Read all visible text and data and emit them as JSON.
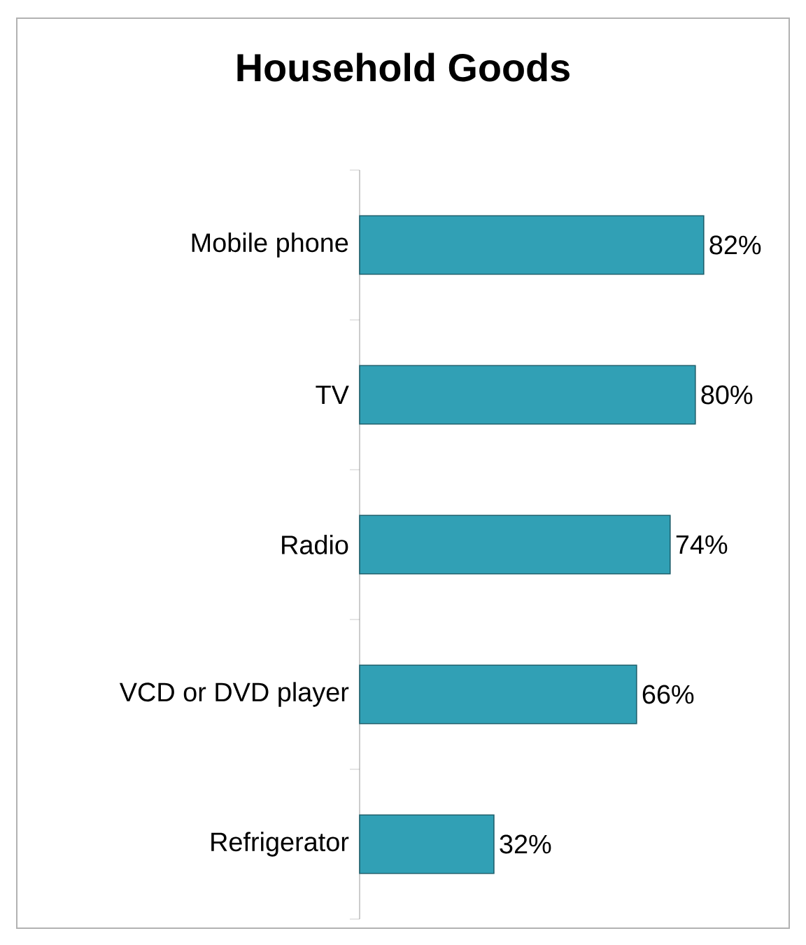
{
  "chart_data": {
    "type": "bar",
    "orientation": "horizontal",
    "title": "Household Goods",
    "categories": [
      "Mobile phone",
      "TV",
      "Radio",
      "VCD or DVD player",
      "Refrigerator"
    ],
    "values": [
      82,
      80,
      74,
      66,
      32
    ],
    "value_labels": [
      "82%",
      "80%",
      "74%",
      "66%",
      "32%"
    ],
    "color": "#31a0b5"
  }
}
